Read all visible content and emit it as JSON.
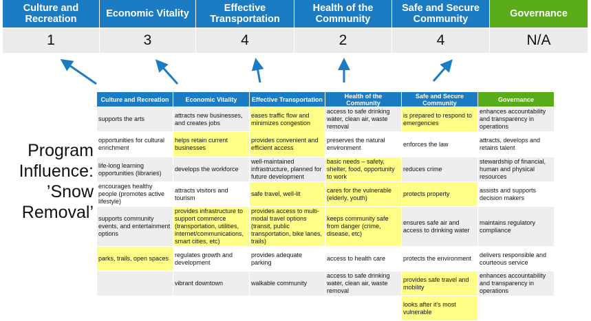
{
  "colors": {
    "header_blue": "#1b7bc3",
    "governance_green": "#5aab19",
    "highlight": "#ffff88",
    "arrow": "#1b7bc3"
  },
  "top": {
    "headers": [
      "Culture and Recreation",
      "Economic Vitality",
      "Effective Transportation",
      "Health of the Community",
      "Safe and Secure Community",
      "Governance"
    ],
    "scores": [
      "1",
      "3",
      "4",
      "2",
      "4",
      "N/A"
    ]
  },
  "side_label": "Program Influence: ’Snow Removal’",
  "table": {
    "headers": [
      "Culture and Recreation",
      "Economic Vitality",
      "Effective Transportation",
      "Health of the Community",
      "Safe and Secure Community",
      "Governance"
    ],
    "rows": [
      [
        {
          "t": "supports the arts"
        },
        {
          "t": "attracts new businesses, and creates jobs"
        },
        {
          "t": "eases traffic flow and minimizes congestion",
          "h": true
        },
        {
          "t": "access to safe drinking water, clean air, waste removal"
        },
        {
          "t": "is prepared to respond to emergencies",
          "h": true
        },
        {
          "t": "enhances accountability and transparency in operations"
        }
      ],
      [
        {
          "t": "opportunities for cultural enrichment"
        },
        {
          "t": "helps retain current businesses",
          "h": true
        },
        {
          "t": "provides convenient and efficient access",
          "h": true
        },
        {
          "t": "preserves the natural environment"
        },
        {
          "t": "enforces the law"
        },
        {
          "t": "attracts, develops and retains talent"
        }
      ],
      [
        {
          "t": "life-long learning opportunities (libraries)"
        },
        {
          "t": "develops the workforce"
        },
        {
          "t": "well-maintained infrastructure, planned for future development"
        },
        {
          "t": "basic needs – safety, shelter, food, opportunity to work",
          "h": true
        },
        {
          "t": "reduces crime"
        },
        {
          "t": "stewardship of financial, human and physical resources"
        }
      ],
      [
        {
          "t": "encourages healthy people (promotes active lifestyle)"
        },
        {
          "t": "attracts visitors and tourism"
        },
        {
          "t": "safe travel, well-lit",
          "h": true
        },
        {
          "t": "cares for the vulnerable (elderly, youth)",
          "h": true
        },
        {
          "t": "protects property",
          "h": true
        },
        {
          "t": "assists and supports decision makers"
        }
      ],
      [
        {
          "t": "supports community events, and entertainment options"
        },
        {
          "t": "provides infrastructure to support commerce (transportation, utilities, internet/communications, smart cities, etc)",
          "h": true
        },
        {
          "t": "provides access to multi-modal travel options (transit, public transportation, bike lanes, trails)",
          "h": true
        },
        {
          "t": "keeps community safe from danger (crime, disease, etc)",
          "h": true
        },
        {
          "t": "ensures safe air and access to drinking water"
        },
        {
          "t": "maintains regulatory compliance"
        }
      ],
      [
        {
          "t": "parks, trails, open spaces",
          "h": true
        },
        {
          "t": "regulates growth and development"
        },
        {
          "t": "provides adequate parking"
        },
        {
          "t": "access to health care"
        },
        {
          "t": "protects the environment"
        },
        {
          "t": "delivers responsible and courteous service"
        }
      ],
      [
        {
          "t": ""
        },
        {
          "t": "vibrant downtown"
        },
        {
          "t": "walkable community"
        },
        {
          "t": "access to safe drinking water, clean air, waste removal"
        },
        {
          "t": "provides safe travel and mobility",
          "h": true
        },
        {
          "t": "enhances accountability and transparency in operations"
        }
      ],
      [
        {
          "t": ""
        },
        {
          "t": ""
        },
        {
          "t": ""
        },
        {
          "t": ""
        },
        {
          "t": "looks after it's most vulnerable",
          "h": true
        },
        {
          "t": ""
        }
      ]
    ]
  }
}
